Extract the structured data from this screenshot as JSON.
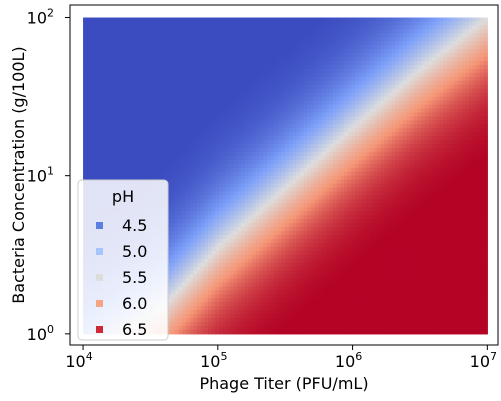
{
  "chart_data": {
    "type": "heatmap",
    "title": "",
    "xlabel": "Phage Titer (PFU/mL)",
    "ylabel": "Bacteria Concentration (g/100L)",
    "x_scale": "log",
    "y_scale": "log",
    "xlim": [
      8000,
      12000000
    ],
    "ylim": [
      0.85,
      120
    ],
    "x_data_range": [
      10000,
      10000000
    ],
    "y_data_range": [
      1,
      100
    ],
    "x_ticks": [
      {
        "value": 10000,
        "base": "10",
        "exp": "4"
      },
      {
        "value": 100000,
        "base": "10",
        "exp": "5"
      },
      {
        "value": 1000000,
        "base": "10",
        "exp": "6"
      },
      {
        "value": 10000000,
        "base": "10",
        "exp": "7"
      }
    ],
    "y_ticks": [
      {
        "value": 1,
        "base": "10",
        "exp": "0"
      },
      {
        "value": 10,
        "base": "10",
        "exp": "1"
      },
      {
        "value": 100,
        "base": "10",
        "exp": "2"
      }
    ],
    "colormap": "coolwarm",
    "color_range": [
      4.3,
      6.7
    ],
    "boundary_ph5_5": [
      {
        "x": 20000,
        "y": 1.0
      },
      {
        "x": 40000,
        "y": 1.5
      },
      {
        "x": 100000,
        "y": 3.5
      },
      {
        "x": 300000,
        "y": 8
      },
      {
        "x": 1000000,
        "y": 20
      },
      {
        "x": 3000000,
        "y": 45
      },
      {
        "x": 10000000,
        "y": 100
      }
    ],
    "grid": false,
    "legend": {
      "title": "pH",
      "position": "lower-left",
      "entries": [
        {
          "label": "4.5",
          "color": "#5b7fe0"
        },
        {
          "label": "5.0",
          "color": "#a7c5fd"
        },
        {
          "label": "5.5",
          "color": "#dcdcdc"
        },
        {
          "label": "6.0",
          "color": "#f4a582"
        },
        {
          "label": "6.5",
          "color": "#cc2936"
        }
      ]
    }
  }
}
